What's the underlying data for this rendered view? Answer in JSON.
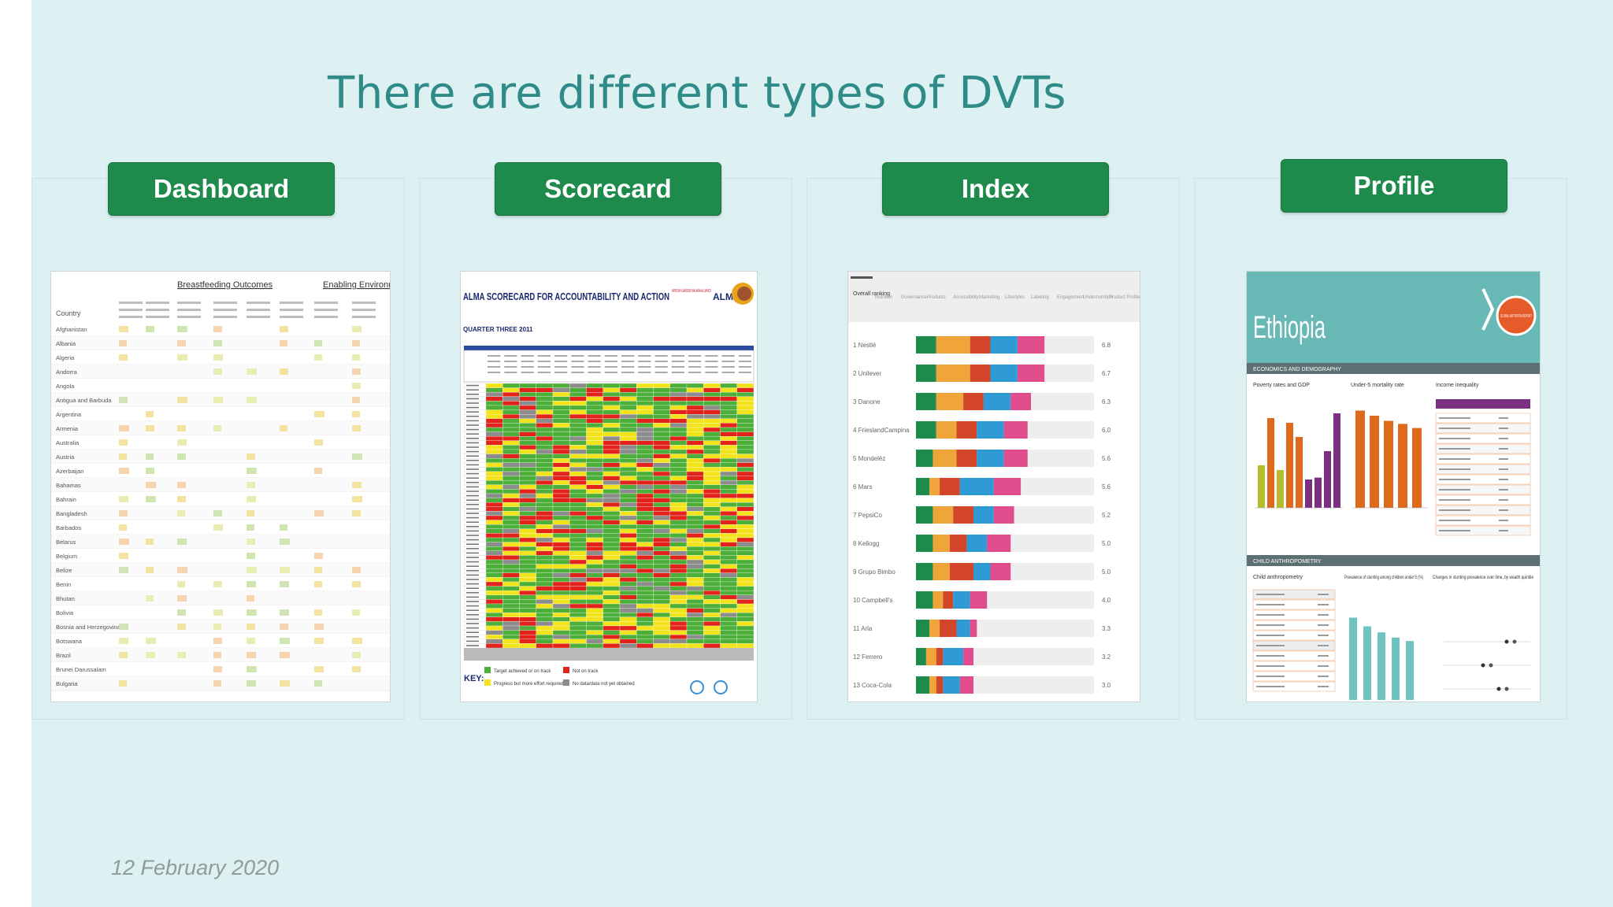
{
  "slide": {
    "title": "There are different types of DVTs",
    "date": "12 February 2020",
    "accent_color": "#1e8b4c",
    "background_color": "#ddf0f2"
  },
  "labels": [
    "Dashboard",
    "Scorecard",
    "Index",
    "Profile"
  ],
  "dashboard_thumb": {
    "group_headers": [
      "Breastfeeding Outcomes",
      "Enabling Environment"
    ],
    "country_header": "Country",
    "countries": [
      "Afghanistan",
      "Albania",
      "Algeria",
      "Andorra",
      "Angola",
      "Antigua and Barbuda",
      "Argentina",
      "Armenia",
      "Australia",
      "Austria",
      "Azerbaijan",
      "Bahamas",
      "Bahrain",
      "Bangladesh",
      "Barbados",
      "Belarus",
      "Belgium",
      "Belize",
      "Benin",
      "Bhutan",
      "Bolivia",
      "Bosnia and Herzegovina",
      "Botswana",
      "Brazil",
      "Brunei Darussalam",
      "Bulgaria"
    ]
  },
  "scorecard_thumb": {
    "title": "ALMA SCORECARD FOR ACCOUNTABILITY AND ACTION",
    "subtitle": "QUARTER THREE 2011",
    "org": "AFRICAN LEADERS MALARIA ALLIANCE",
    "logo_text": "ALMA",
    "key_label": "KEY:",
    "key_items": [
      "Target achieved or on track",
      "Progress but more effort required",
      "Not on track",
      "No data/data not yet obtained"
    ]
  },
  "index_thumb": {
    "first_col_header": "Overall ranking",
    "col_headers": [
      "Nutrition",
      "Governance",
      "Products",
      "Accessibility",
      "Marketing",
      "Lifestyles",
      "Labeling",
      "Engagement",
      "Undernutrition",
      "Product Profile"
    ],
    "companies": [
      "1 Nestlé",
      "2 Unilever",
      "3 Danone",
      "4 FrieslandCampina",
      "5 Mondelēz",
      "6 Mars",
      "7 PepsiCo",
      "8 Kellogg",
      "9 Grupo Bimbo",
      "10 Campbell's",
      "11 Arla",
      "12 Ferrero",
      "13 Coca-Cola"
    ],
    "scores": [
      "6.8",
      "6.7",
      "6.3",
      "6.0",
      "5.6",
      "5.6",
      "5.2",
      "5.0",
      "5.0",
      "4.0",
      "3.3",
      "3.2",
      "3.0"
    ],
    "segments": [
      [
        0.06,
        0.1,
        0.06,
        0.08,
        0.08
      ],
      [
        0.06,
        0.1,
        0.06,
        0.08,
        0.08
      ],
      [
        0.06,
        0.08,
        0.06,
        0.08,
        0.06
      ],
      [
        0.06,
        0.06,
        0.06,
        0.08,
        0.07
      ],
      [
        0.05,
        0.07,
        0.06,
        0.08,
        0.07
      ],
      [
        0.04,
        0.03,
        0.06,
        0.1,
        0.08
      ],
      [
        0.05,
        0.06,
        0.06,
        0.06,
        0.06
      ],
      [
        0.05,
        0.05,
        0.05,
        0.06,
        0.07
      ],
      [
        0.05,
        0.05,
        0.07,
        0.05,
        0.06
      ],
      [
        0.05,
        0.03,
        0.03,
        0.05,
        0.05
      ],
      [
        0.04,
        0.03,
        0.05,
        0.04,
        0.02
      ],
      [
        0.03,
        0.03,
        0.02,
        0.06,
        0.03
      ],
      [
        0.04,
        0.02,
        0.02,
        0.05,
        0.04
      ]
    ]
  },
  "profile_thumb": {
    "country": "Ethiopia",
    "badge": "GLOBAL NUTRITION REPORT",
    "section1": "ECONOMICS AND DEMOGRAPHY",
    "section2": "CHILD ANTHROPOMETRY",
    "subheads": [
      "Poverty rates and GDP",
      "Under-5 mortality rate",
      "Income inequality",
      "Child anthropometry",
      "Prevalence of stunting among children under 5 (%)",
      "Changes in stunting prevalence over time, by wealth quintile"
    ]
  }
}
